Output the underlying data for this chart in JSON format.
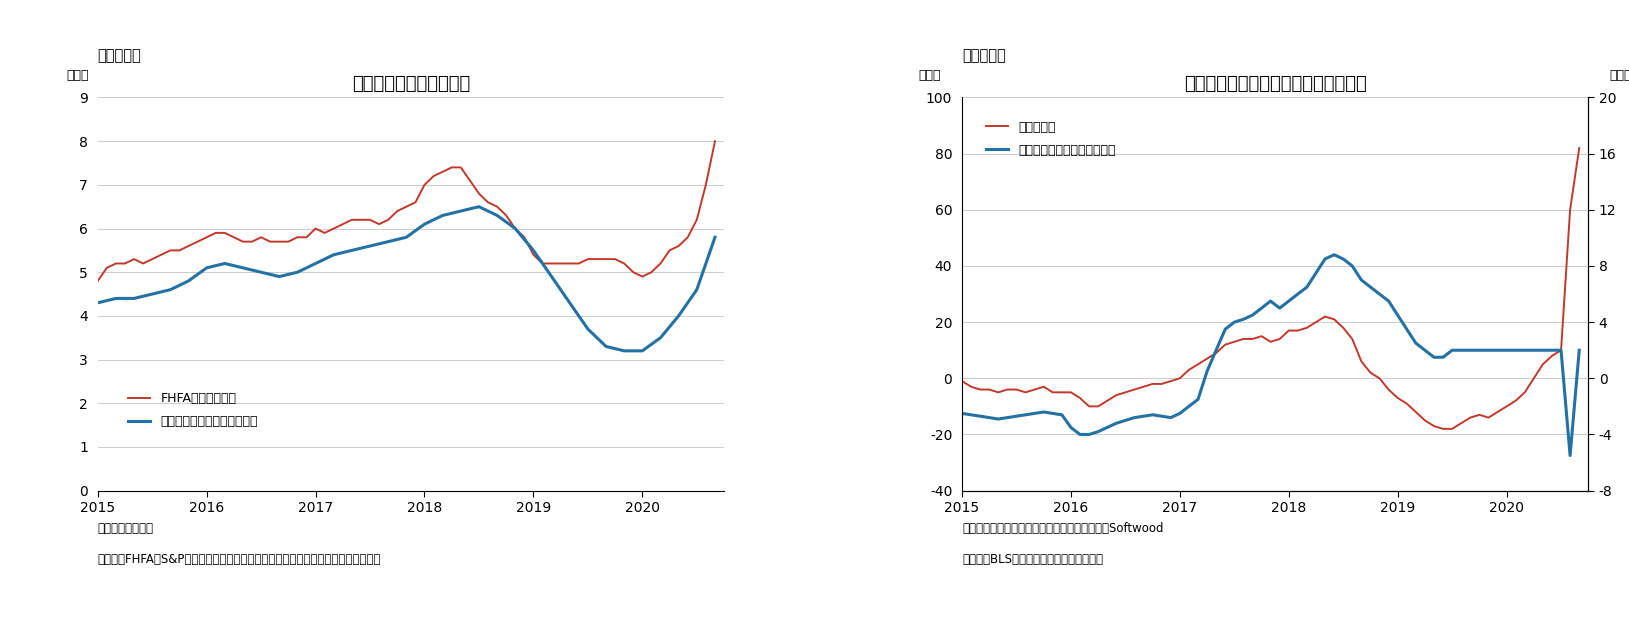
{
  "chart1": {
    "title": "住宅価格（前年同月比）",
    "suptitle": "（図表７）",
    "ylabel": "（％）",
    "ylim": [
      0,
      9
    ],
    "yticks": [
      0,
      1,
      2,
      3,
      4,
      5,
      6,
      7,
      8,
      9
    ],
    "note1": "（注）前年同月比",
    "note2": "（資料）FHFA、S&Pダウ・ジョーンズ・インデックスよりニッセイ基礎研究所作成",
    "fhfa_color": "#c0392b",
    "cs_color": "#2471a3",
    "legend1": "FHFA住宅価格指数",
    "legend2": "ケース・シラー住宅価格指数",
    "fhfa_x": [
      2015.0,
      2015.083,
      2015.167,
      2015.25,
      2015.333,
      2015.417,
      2015.5,
      2015.583,
      2015.667,
      2015.75,
      2015.833,
      2015.917,
      2016.0,
      2016.083,
      2016.167,
      2016.25,
      2016.333,
      2016.417,
      2016.5,
      2016.583,
      2016.667,
      2016.75,
      2016.833,
      2016.917,
      2017.0,
      2017.083,
      2017.167,
      2017.25,
      2017.333,
      2017.417,
      2017.5,
      2017.583,
      2017.667,
      2017.75,
      2017.833,
      2017.917,
      2018.0,
      2018.083,
      2018.167,
      2018.25,
      2018.333,
      2018.417,
      2018.5,
      2018.583,
      2018.667,
      2018.75,
      2018.833,
      2018.917,
      2019.0,
      2019.083,
      2019.167,
      2019.25,
      2019.333,
      2019.417,
      2019.5,
      2019.583,
      2019.667,
      2019.75,
      2019.833,
      2019.917,
      2020.0,
      2020.083,
      2020.167,
      2020.25,
      2020.333,
      2020.417,
      2020.5,
      2020.583,
      2020.667
    ],
    "fhfa_y": [
      4.8,
      5.1,
      5.2,
      5.2,
      5.3,
      5.2,
      5.3,
      5.4,
      5.5,
      5.5,
      5.6,
      5.7,
      5.8,
      5.9,
      5.9,
      5.8,
      5.7,
      5.7,
      5.8,
      5.7,
      5.7,
      5.7,
      5.8,
      5.8,
      6.0,
      5.9,
      6.0,
      6.1,
      6.2,
      6.2,
      6.2,
      6.1,
      6.2,
      6.4,
      6.5,
      6.6,
      7.0,
      7.2,
      7.3,
      7.4,
      7.4,
      7.1,
      6.8,
      6.6,
      6.5,
      6.3,
      6.0,
      5.8,
      5.4,
      5.2,
      5.2,
      5.2,
      5.2,
      5.2,
      5.3,
      5.3,
      5.3,
      5.3,
      5.2,
      5.0,
      4.9,
      5.0,
      5.2,
      5.5,
      5.6,
      5.8,
      6.2,
      7.0,
      8.0
    ],
    "cs_x": [
      2015.0,
      2015.167,
      2015.333,
      2015.5,
      2015.667,
      2015.833,
      2016.0,
      2016.167,
      2016.333,
      2016.5,
      2016.667,
      2016.833,
      2017.0,
      2017.167,
      2017.333,
      2017.5,
      2017.667,
      2017.833,
      2018.0,
      2018.167,
      2018.333,
      2018.5,
      2018.667,
      2018.833,
      2019.0,
      2019.167,
      2019.333,
      2019.5,
      2019.667,
      2019.833,
      2020.0,
      2020.167,
      2020.333,
      2020.5,
      2020.667
    ],
    "cs_y": [
      4.3,
      4.4,
      4.4,
      4.5,
      4.6,
      4.8,
      5.1,
      5.2,
      5.1,
      5.0,
      4.9,
      5.0,
      5.2,
      5.4,
      5.5,
      5.6,
      5.7,
      5.8,
      6.1,
      6.3,
      6.4,
      6.5,
      6.3,
      6.0,
      5.5,
      4.9,
      4.3,
      3.7,
      3.3,
      3.2,
      3.2,
      3.5,
      4.0,
      4.6,
      5.8
    ]
  },
  "chart2": {
    "title": "建設関連の生産者物価（前年同月比）",
    "suptitle": "（図表８）",
    "ylabel_left": "（％）",
    "ylabel_right": "（％）",
    "ylim_left": [
      -40,
      100
    ],
    "ylim_right": [
      -8,
      20
    ],
    "yticks_left": [
      -40,
      -20,
      0,
      20,
      40,
      60,
      80,
      100
    ],
    "yticks_right": [
      -8,
      -4,
      0,
      4,
      8,
      12,
      16,
      20
    ],
    "note1": "（注）未季調指数の前年同月比。針葉樹製材はSoftwood",
    "note2": "（資料）BLSよりニッセイ基礎研究所作成",
    "softwood_color": "#c0392b",
    "construction_color": "#2471a3",
    "legend1": "針葉樹製材",
    "legend2": "住宅建設財投入価格（右軸）",
    "softwood_x": [
      2015.0,
      2015.083,
      2015.167,
      2015.25,
      2015.333,
      2015.417,
      2015.5,
      2015.583,
      2015.667,
      2015.75,
      2015.833,
      2015.917,
      2016.0,
      2016.083,
      2016.167,
      2016.25,
      2016.333,
      2016.417,
      2016.5,
      2016.583,
      2016.667,
      2016.75,
      2016.833,
      2016.917,
      2017.0,
      2017.083,
      2017.167,
      2017.25,
      2017.333,
      2017.417,
      2017.5,
      2017.583,
      2017.667,
      2017.75,
      2017.833,
      2017.917,
      2018.0,
      2018.083,
      2018.167,
      2018.25,
      2018.333,
      2018.417,
      2018.5,
      2018.583,
      2018.667,
      2018.75,
      2018.833,
      2018.917,
      2019.0,
      2019.083,
      2019.167,
      2019.25,
      2019.333,
      2019.417,
      2019.5,
      2019.583,
      2019.667,
      2019.75,
      2019.833,
      2019.917,
      2020.0,
      2020.083,
      2020.167,
      2020.25,
      2020.333,
      2020.417,
      2020.5,
      2020.583,
      2020.667
    ],
    "softwood_y": [
      -1,
      -3,
      -4,
      -4,
      -5,
      -4,
      -4,
      -5,
      -4,
      -3,
      -5,
      -5,
      -5,
      -7,
      -10,
      -10,
      -8,
      -6,
      -5,
      -4,
      -3,
      -2,
      -2,
      -1,
      0,
      3,
      5,
      7,
      9,
      12,
      13,
      14,
      14,
      15,
      13,
      14,
      17,
      17,
      18,
      20,
      22,
      21,
      18,
      14,
      6,
      2,
      0,
      -4,
      -7,
      -9,
      -12,
      -15,
      -17,
      -18,
      -18,
      -16,
      -14,
      -13,
      -14,
      -12,
      -10,
      -8,
      -5,
      0,
      5,
      8,
      10,
      60,
      82
    ],
    "construction_y_right": [
      -2.5,
      -2.6,
      -2.7,
      -2.8,
      -2.9,
      -2.8,
      -2.7,
      -2.6,
      -2.5,
      -2.4,
      -2.5,
      -2.6,
      -3.5,
      -4.0,
      -4.0,
      -3.8,
      -3.5,
      -3.2,
      -3.0,
      -2.8,
      -2.7,
      -2.6,
      -2.7,
      -2.8,
      -2.5,
      -2.0,
      -1.5,
      0.5,
      2.0,
      3.5,
      4.0,
      4.2,
      4.5,
      5.0,
      5.5,
      5.0,
      5.5,
      6.0,
      6.5,
      7.5,
      8.5,
      8.8,
      8.5,
      8.0,
      7.0,
      6.5,
      6.0,
      5.5,
      4.5,
      3.5,
      2.5,
      2.0,
      1.5,
      1.5,
      2.0,
      2.0,
      2.0,
      2.0,
      2.0,
      2.0,
      2.0,
      2.0,
      2.0,
      2.0,
      2.0,
      2.0,
      2.0,
      -5.5,
      2.0
    ]
  },
  "background_color": "#ffffff",
  "grid_color": "#cccccc",
  "text_color": "#000000"
}
